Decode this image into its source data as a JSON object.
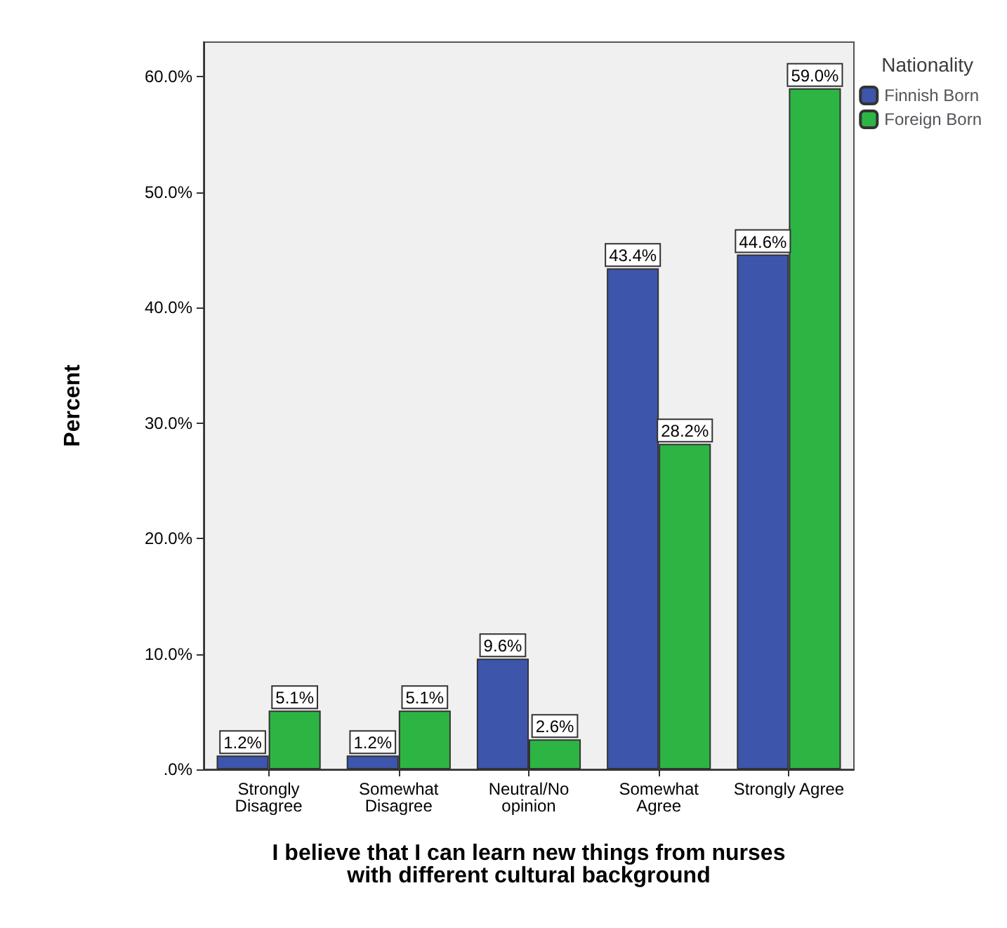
{
  "chart_data": {
    "type": "bar",
    "xlabel": "I believe that I can learn new things from nurses\nwith different cultural background",
    "ylabel": "Percent",
    "legend_title": "Nationality",
    "legend": "top right",
    "categories": [
      "Strongly\nDisagree",
      "Somewhat\nDisagree",
      "Neutral/No\nopinion",
      "Somewhat\nAgree",
      "Strongly Agree"
    ],
    "series": [
      {
        "name": "Finnish Born",
        "color": "#3d56ab",
        "values": [
          1.2,
          1.2,
          9.6,
          43.4,
          44.6
        ],
        "value_labels": [
          "1.2%",
          "1.2%",
          "9.6%",
          "43.4%",
          "44.6%"
        ]
      },
      {
        "name": "Foreign Born",
        "color": "#2db544",
        "values": [
          5.1,
          5.1,
          2.6,
          28.2,
          59.0
        ],
        "value_labels": [
          "5.1%",
          "5.1%",
          "2.6%",
          "28.2%",
          "59.0%"
        ]
      }
    ],
    "ylim": [
      0,
      63
    ],
    "yticks": [
      {
        "value": 0,
        "label": ".0%"
      },
      {
        "value": 10,
        "label": "10.0%"
      },
      {
        "value": 20,
        "label": "20.0%"
      },
      {
        "value": 30,
        "label": "30.0%"
      },
      {
        "value": 40,
        "label": "40.0%"
      },
      {
        "value": 50,
        "label": "50.0%"
      },
      {
        "value": 60,
        "label": "60.0%"
      }
    ],
    "grid": false
  }
}
